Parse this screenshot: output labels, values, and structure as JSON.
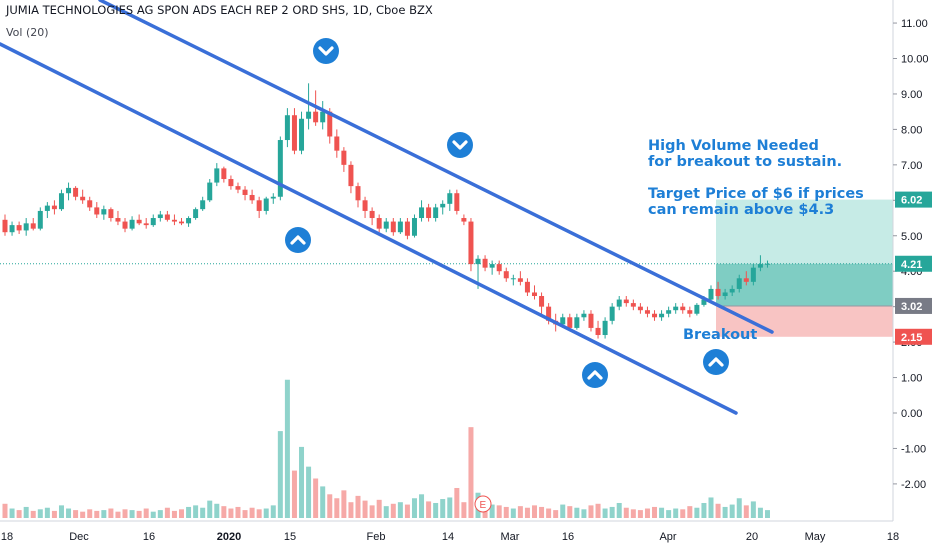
{
  "header": {
    "title": "JUMIA TECHNOLOGIES AG SPON ADS EACH REP 2 ORD SHS, 1D, Cboe BZX",
    "volume_label": "Vol (20)"
  },
  "colors": {
    "up": "#26a69a",
    "down": "#ef5350",
    "vol_up": "#8fd3cb",
    "vol_down": "#f6a9a7",
    "trend": "#3a6fd8",
    "target_zone": "#9fd8d0",
    "stop_zone": "#f8c4c3",
    "entry_tag": "#787b86",
    "annotation": "#1e7fd6"
  },
  "annotations": {
    "volume_note_1": "High Volume Needed",
    "volume_note_2": "for breakout to sustain.",
    "target_note_1": "Target Price of $6 if prices",
    "target_note_2": "can remain above $4.3",
    "breakout": "Breakout",
    "earnings_marker": "E"
  },
  "chart_data": {
    "type": "candlestick",
    "title": "JUMIA TECHNOLOGIES AG SPON ADS EACH REP 2 ORD SHS, 1D, Cboe BZX",
    "y_axis": {
      "ticks": [
        "11.00",
        "10.00",
        "9.00",
        "8.00",
        "7.00",
        "6.00",
        "5.00",
        "4.00",
        "3.00",
        "2.00",
        "1.00",
        "0.00",
        "-1.00",
        "-2.00"
      ],
      "range": [
        -3.0,
        11.4
      ],
      "side": "right"
    },
    "x_axis": {
      "ticks": [
        "18",
        "Dec",
        "16",
        "2020",
        "15",
        "Feb",
        "14",
        "Mar",
        "16",
        "Apr",
        "20",
        "May",
        "18"
      ]
    },
    "price_tags": [
      {
        "label": "6.02",
        "value": 6.02,
        "role": "target"
      },
      {
        "label": "4.21",
        "value": 4.21,
        "role": "last"
      },
      {
        "label": "3.02",
        "value": 3.02,
        "role": "entry"
      },
      {
        "label": "2.15",
        "value": 2.15,
        "role": "stop"
      }
    ],
    "candles_ohlc": [
      [
        5.45,
        5.6,
        5.0,
        5.1
      ],
      [
        5.1,
        5.4,
        5.0,
        5.3
      ],
      [
        5.3,
        5.4,
        5.05,
        5.15
      ],
      [
        5.15,
        5.5,
        5.0,
        5.35
      ],
      [
        5.35,
        5.5,
        5.15,
        5.2
      ],
      [
        5.2,
        5.8,
        5.15,
        5.7
      ],
      [
        5.7,
        5.95,
        5.5,
        5.85
      ],
      [
        5.85,
        6.0,
        5.6,
        5.75
      ],
      [
        5.75,
        6.3,
        5.7,
        6.2
      ],
      [
        6.2,
        6.5,
        6.0,
        6.35
      ],
      [
        6.35,
        6.4,
        6.0,
        6.1
      ],
      [
        6.1,
        6.3,
        5.9,
        6.0
      ],
      [
        6.0,
        6.1,
        5.7,
        5.8
      ],
      [
        5.8,
        5.95,
        5.5,
        5.6
      ],
      [
        5.6,
        5.85,
        5.45,
        5.75
      ],
      [
        5.75,
        5.8,
        5.4,
        5.5
      ],
      [
        5.5,
        5.7,
        5.3,
        5.4
      ],
      [
        5.4,
        5.5,
        5.1,
        5.2
      ],
      [
        5.2,
        5.55,
        5.15,
        5.45
      ],
      [
        5.45,
        5.6,
        5.3,
        5.35
      ],
      [
        5.35,
        5.5,
        5.2,
        5.3
      ],
      [
        5.3,
        5.6,
        5.25,
        5.5
      ],
      [
        5.5,
        5.7,
        5.4,
        5.6
      ],
      [
        5.6,
        5.7,
        5.4,
        5.45
      ],
      [
        5.45,
        5.6,
        5.3,
        5.4
      ],
      [
        5.4,
        5.5,
        5.3,
        5.35
      ],
      [
        5.35,
        5.55,
        5.25,
        5.5
      ],
      [
        5.5,
        5.8,
        5.45,
        5.75
      ],
      [
        5.75,
        6.1,
        5.7,
        6.0
      ],
      [
        6.0,
        6.6,
        5.95,
        6.5
      ],
      [
        6.5,
        7.05,
        6.4,
        6.9
      ],
      [
        6.9,
        6.95,
        6.5,
        6.6
      ],
      [
        6.6,
        6.7,
        6.3,
        6.4
      ],
      [
        6.4,
        6.5,
        6.2,
        6.3
      ],
      [
        6.3,
        6.4,
        6.0,
        6.15
      ],
      [
        6.15,
        6.3,
        5.9,
        6.0
      ],
      [
        6.0,
        6.1,
        5.5,
        5.7
      ],
      [
        5.7,
        6.1,
        5.6,
        6.05
      ],
      [
        6.05,
        6.2,
        5.9,
        6.1
      ],
      [
        6.1,
        7.8,
        6.0,
        7.7
      ],
      [
        7.7,
        8.6,
        7.5,
        8.4
      ],
      [
        8.4,
        8.6,
        7.3,
        7.4
      ],
      [
        7.4,
        8.5,
        7.3,
        8.3
      ],
      [
        8.3,
        9.3,
        8.0,
        8.5
      ],
      [
        8.5,
        9.1,
        8.1,
        8.2
      ],
      [
        8.2,
        8.8,
        8.0,
        8.5
      ],
      [
        8.5,
        8.6,
        7.6,
        7.8
      ],
      [
        7.8,
        8.0,
        7.2,
        7.4
      ],
      [
        7.4,
        7.5,
        6.8,
        7.0
      ],
      [
        7.0,
        7.1,
        6.2,
        6.4
      ],
      [
        6.4,
        6.5,
        5.8,
        6.0
      ],
      [
        6.0,
        6.1,
        5.5,
        5.7
      ],
      [
        5.7,
        5.8,
        5.3,
        5.5
      ],
      [
        5.5,
        5.6,
        5.1,
        5.2
      ],
      [
        5.2,
        5.5,
        5.1,
        5.4
      ],
      [
        5.4,
        5.5,
        5.0,
        5.1
      ],
      [
        5.1,
        5.5,
        5.05,
        5.4
      ],
      [
        5.4,
        5.5,
        4.9,
        5.0
      ],
      [
        5.0,
        5.6,
        4.95,
        5.5
      ],
      [
        5.5,
        6.0,
        5.4,
        5.8
      ],
      [
        5.8,
        5.9,
        5.4,
        5.5
      ],
      [
        5.5,
        5.9,
        5.4,
        5.8
      ],
      [
        5.8,
        6.0,
        5.6,
        5.9
      ],
      [
        5.9,
        6.3,
        5.7,
        6.2
      ],
      [
        6.2,
        6.3,
        5.6,
        5.7
      ],
      [
        5.5,
        5.6,
        5.3,
        5.4
      ],
      [
        5.4,
        5.5,
        4.0,
        4.2
      ],
      [
        4.2,
        4.45,
        3.5,
        4.35
      ],
      [
        4.35,
        4.45,
        4.0,
        4.1
      ],
      [
        4.1,
        4.3,
        3.9,
        4.2
      ],
      [
        4.2,
        4.3,
        3.9,
        4.0
      ],
      [
        4.0,
        4.1,
        3.7,
        3.8
      ],
      [
        3.8,
        3.9,
        3.6,
        3.8
      ],
      [
        3.8,
        4.0,
        3.6,
        3.7
      ],
      [
        3.7,
        3.8,
        3.3,
        3.4
      ],
      [
        3.4,
        3.6,
        3.2,
        3.3
      ],
      [
        3.3,
        3.4,
        2.8,
        3.0
      ],
      [
        3.0,
        3.1,
        2.5,
        2.6
      ],
      [
        2.6,
        2.8,
        2.3,
        2.5
      ],
      [
        2.5,
        2.8,
        2.4,
        2.7
      ],
      [
        2.7,
        2.8,
        2.3,
        2.4
      ],
      [
        2.4,
        2.8,
        2.35,
        2.7
      ],
      [
        2.7,
        2.9,
        2.6,
        2.8
      ],
      [
        2.8,
        2.9,
        2.3,
        2.4
      ],
      [
        2.4,
        2.6,
        2.1,
        2.2
      ],
      [
        2.2,
        2.7,
        2.1,
        2.6
      ],
      [
        2.6,
        3.1,
        2.5,
        3.0
      ],
      [
        3.0,
        3.3,
        2.9,
        3.2
      ],
      [
        3.2,
        3.3,
        3.0,
        3.1
      ],
      [
        3.1,
        3.2,
        2.9,
        3.0
      ],
      [
        3.0,
        3.1,
        2.8,
        2.9
      ],
      [
        2.9,
        3.0,
        2.7,
        2.8
      ],
      [
        2.8,
        2.9,
        2.6,
        2.7
      ],
      [
        2.7,
        2.9,
        2.6,
        2.8
      ],
      [
        2.8,
        3.0,
        2.7,
        2.9
      ],
      [
        2.9,
        3.1,
        2.8,
        3.0
      ],
      [
        3.0,
        3.1,
        2.8,
        2.9
      ],
      [
        2.9,
        3.0,
        2.7,
        2.8
      ],
      [
        2.8,
        3.1,
        2.75,
        3.05
      ],
      [
        3.05,
        3.3,
        3.0,
        3.2
      ],
      [
        3.2,
        3.6,
        3.1,
        3.5
      ],
      [
        3.5,
        3.7,
        3.2,
        3.3
      ],
      [
        3.3,
        3.5,
        3.2,
        3.4
      ],
      [
        3.4,
        3.6,
        3.3,
        3.5
      ],
      [
        3.5,
        3.9,
        3.4,
        3.8
      ],
      [
        3.8,
        4.0,
        3.6,
        3.7
      ],
      [
        3.7,
        4.2,
        3.6,
        4.1
      ],
      [
        4.1,
        4.45,
        4.0,
        4.2
      ],
      [
        4.2,
        4.3,
        4.1,
        4.21
      ]
    ],
    "volume": [
      1.8,
      1.2,
      1.0,
      1.4,
      0.9,
      1.1,
      1.3,
      0.9,
      1.6,
      1.2,
      1.0,
      0.8,
      1.1,
      0.9,
      1.0,
      1.2,
      0.8,
      1.1,
      1.0,
      0.9,
      1.2,
      0.8,
      1.0,
      1.3,
      0.9,
      1.1,
      1.4,
      1.6,
      1.3,
      2.2,
      1.8,
      1.5,
      1.2,
      1.4,
      1.0,
      1.3,
      1.1,
      1.2,
      1.6,
      11.0,
      17.5,
      6.0,
      9.0,
      6.5,
      5.0,
      4.0,
      3.0,
      2.5,
      3.5,
      2.0,
      2.8,
      2.2,
      1.6,
      2.3,
      1.5,
      1.8,
      2.0,
      1.7,
      2.5,
      3.0,
      2.1,
      1.9,
      2.4,
      2.6,
      3.8,
      2.0,
      11.5,
      3.2,
      2.0,
      1.7,
      1.6,
      1.4,
      1.2,
      1.5,
      1.3,
      1.6,
      1.4,
      1.2,
      1.0,
      1.7,
      1.5,
      1.3,
      1.1,
      1.6,
      1.8,
      1.2,
      1.4,
      1.9,
      1.3,
      1.1,
      1.0,
      1.2,
      1.4,
      1.3,
      1.0,
      1.2,
      1.1,
      1.5,
      1.3,
      1.9,
      2.6,
      1.8,
      1.4,
      1.7,
      2.5,
      1.6,
      2.1,
      1.3,
      1.0
    ]
  }
}
